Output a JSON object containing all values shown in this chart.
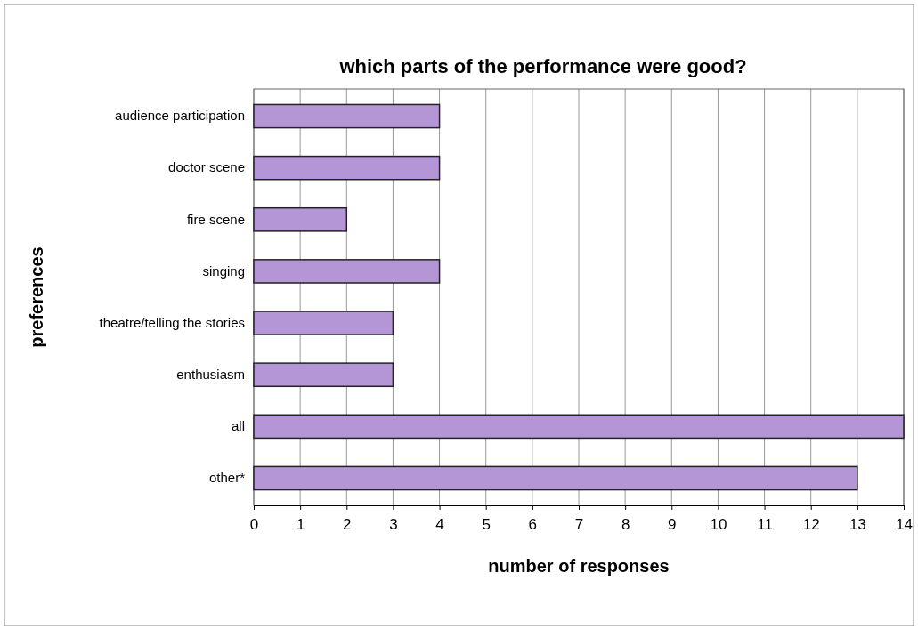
{
  "chart_data": {
    "type": "bar",
    "orientation": "horizontal",
    "title": "which parts of the performance were good?",
    "xlabel": "number of responses",
    "ylabel": "preferences",
    "categories": [
      "audience participation",
      "doctor scene",
      "fire scene",
      "singing",
      "theatre/telling the stories",
      "enthusiasm",
      "all",
      "other*"
    ],
    "values": [
      4,
      4,
      2,
      4,
      3,
      3,
      14,
      13
    ],
    "color": "#b496d6",
    "xlim": [
      0,
      14
    ],
    "xticks": [
      0,
      1,
      2,
      3,
      4,
      5,
      6,
      7,
      8,
      9,
      10,
      11,
      12,
      13,
      14
    ],
    "grid": "x"
  }
}
